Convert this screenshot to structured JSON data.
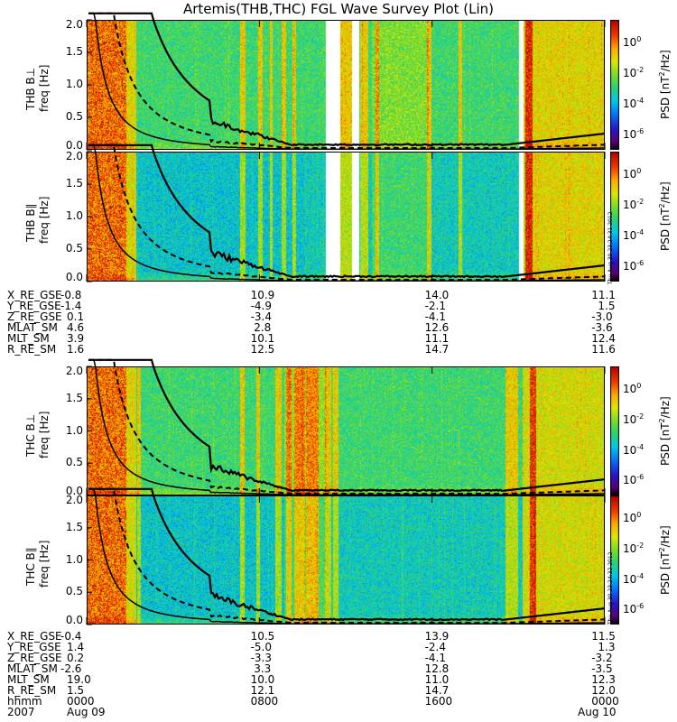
{
  "title": "Artemis(THB,THC) FGL Wave Survey Plot (Lin)",
  "colorbar": {
    "label_prefix": "PSD [nT",
    "label_sup": "2",
    "label_suffix": "/Hz]",
    "ticks": [
      {
        "base": "10",
        "exp": "0",
        "log": 0
      },
      {
        "base": "10",
        "exp": "-2",
        "log": -2
      },
      {
        "base": "10",
        "exp": "-4",
        "log": -4
      },
      {
        "base": "10",
        "exp": "-6",
        "log": -6
      }
    ],
    "log_range": [
      -7,
      1.5
    ]
  },
  "timestamp_text": "Thu Aug 30 23:24:31 2012",
  "timestamp_text2": "Thu Aug 30 23:24:32 2012",
  "chart_data": [
    {
      "type": "heatmap",
      "ylabel_probe": "THB B⊥",
      "ylabel_axis": "freq [Hz]",
      "ylim": [
        0,
        2.0
      ],
      "yticks": [
        "0.0",
        "0.5",
        "1.0",
        "1.5",
        "2.0"
      ],
      "gaps_fraction": [
        [
          0.46,
          0.488
        ],
        [
          0.512,
          0.525
        ],
        [
          0.833,
          0.843
        ]
      ]
    },
    {
      "type": "heatmap",
      "ylabel_probe": "THB B∥",
      "ylabel_axis": "freq [Hz]",
      "ylim": [
        0,
        2.0
      ],
      "yticks": [
        "0.0",
        "0.5",
        "1.0",
        "1.5",
        "2.0"
      ],
      "gaps_fraction": [
        [
          0.46,
          0.488
        ],
        [
          0.512,
          0.525
        ],
        [
          0.833,
          0.843
        ]
      ]
    },
    {
      "type": "heatmap",
      "ylabel_probe": "THC B⊥",
      "ylabel_axis": "freq [Hz]",
      "ylim": [
        0,
        2.0
      ],
      "yticks": [
        "0.0",
        "0.5",
        "1.0",
        "1.5",
        "2.0"
      ],
      "gaps_fraction": []
    },
    {
      "type": "heatmap",
      "ylabel_probe": "THC B∥",
      "ylabel_axis": "freq [Hz]",
      "ylim": [
        0,
        2.0
      ],
      "yticks": [
        "0.0",
        "0.5",
        "1.0",
        "1.5",
        "2.0"
      ],
      "gaps_fraction": []
    }
  ],
  "ephemeris_thb": {
    "labels": [
      "X_RE_GSE",
      "Y_RE_GSE",
      "Z_RE_GSE",
      "MLAT_SM",
      "MLT_SM",
      "R_RE_SM"
    ],
    "columns": [
      [
        "-0.8",
        "-1.4",
        "0.1",
        "4.6",
        "3.9",
        "1.6"
      ],
      [
        "10.9",
        "-4.9",
        "-3.4",
        "2.8",
        "10.1",
        "12.5"
      ],
      [
        "14.0",
        "-2.1",
        "-4.1",
        "12.6",
        "11.1",
        "14.7"
      ],
      [
        "11.1",
        "1.5",
        "-3.0",
        "-3.6",
        "12.4",
        "11.6"
      ]
    ]
  },
  "ephemeris_thc": {
    "labels": [
      "X_RE_GSE",
      "Y_RE_GSE",
      "Z_RE_GSE",
      "MLAT_SM",
      "MLT_SM",
      "R_RE_SM",
      "hhmm"
    ],
    "columns": [
      [
        "-0.4",
        "1.4",
        "0.2",
        "-2.6",
        "19.0",
        "1.5",
        "0000"
      ],
      [
        "10.5",
        "-5.0",
        "-3.3",
        "3.3",
        "10.0",
        "12.1",
        "0800"
      ],
      [
        "13.9",
        "-2.4",
        "-4.1",
        "12.8",
        "11.0",
        "14.7",
        "1600"
      ],
      [
        "11.5",
        "1.3",
        "-3.2",
        "-3.5",
        "12.3",
        "12.0",
        "0000"
      ]
    ],
    "year": "2007",
    "dates": [
      "Aug 09",
      "Aug 10"
    ]
  }
}
